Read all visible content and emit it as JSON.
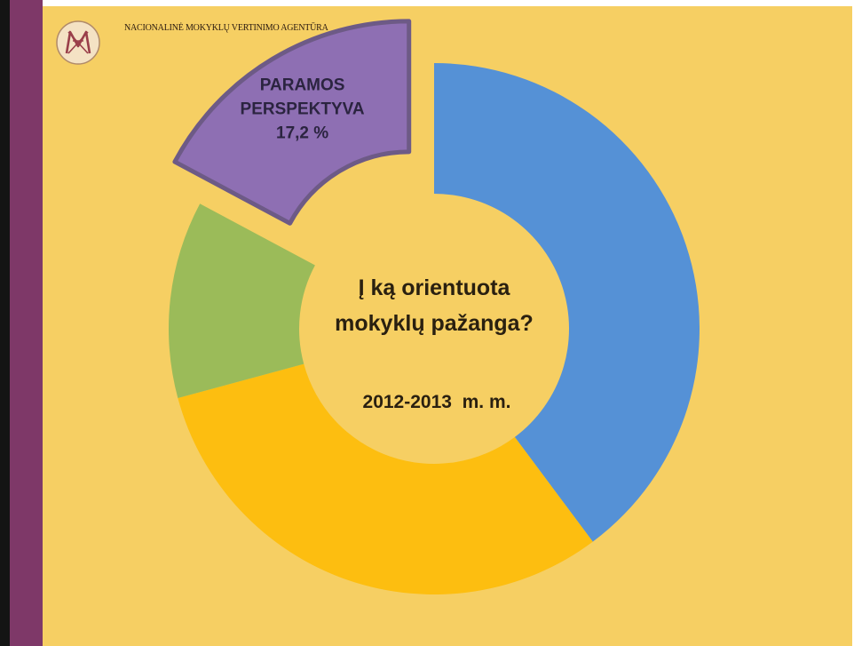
{
  "header": {
    "agency_name": "NACIONALINĖ MOKYKLŲ VERTINIMO AGENTŪRA",
    "logo_icon": "nmva-monogram-logo"
  },
  "colors": {
    "background": "#f6cf63",
    "left_band": "#7e3868",
    "blue": "#5591d6",
    "yellow": "#fdbe10",
    "green": "#9bbb59",
    "purple": "#8e6fb3"
  },
  "chart_data": {
    "type": "pie",
    "style": "doughnut",
    "title": "Į ką orientuota mokyklų pažanga?",
    "subtitle": "2012-2013  m. m.",
    "slices": [
      {
        "value": 39.8,
        "color": "#5591d6",
        "label": []
      },
      {
        "value": 31.0,
        "color": "#fdbe10",
        "label": []
      },
      {
        "value": 12.0,
        "color": "#9bbb59",
        "label": []
      },
      {
        "value": 17.2,
        "color": "#8e6fb3",
        "label": [
          "PARAMOS",
          "PERSPEKTYVA",
          "17,2 %"
        ],
        "exploded": true
      }
    ]
  }
}
